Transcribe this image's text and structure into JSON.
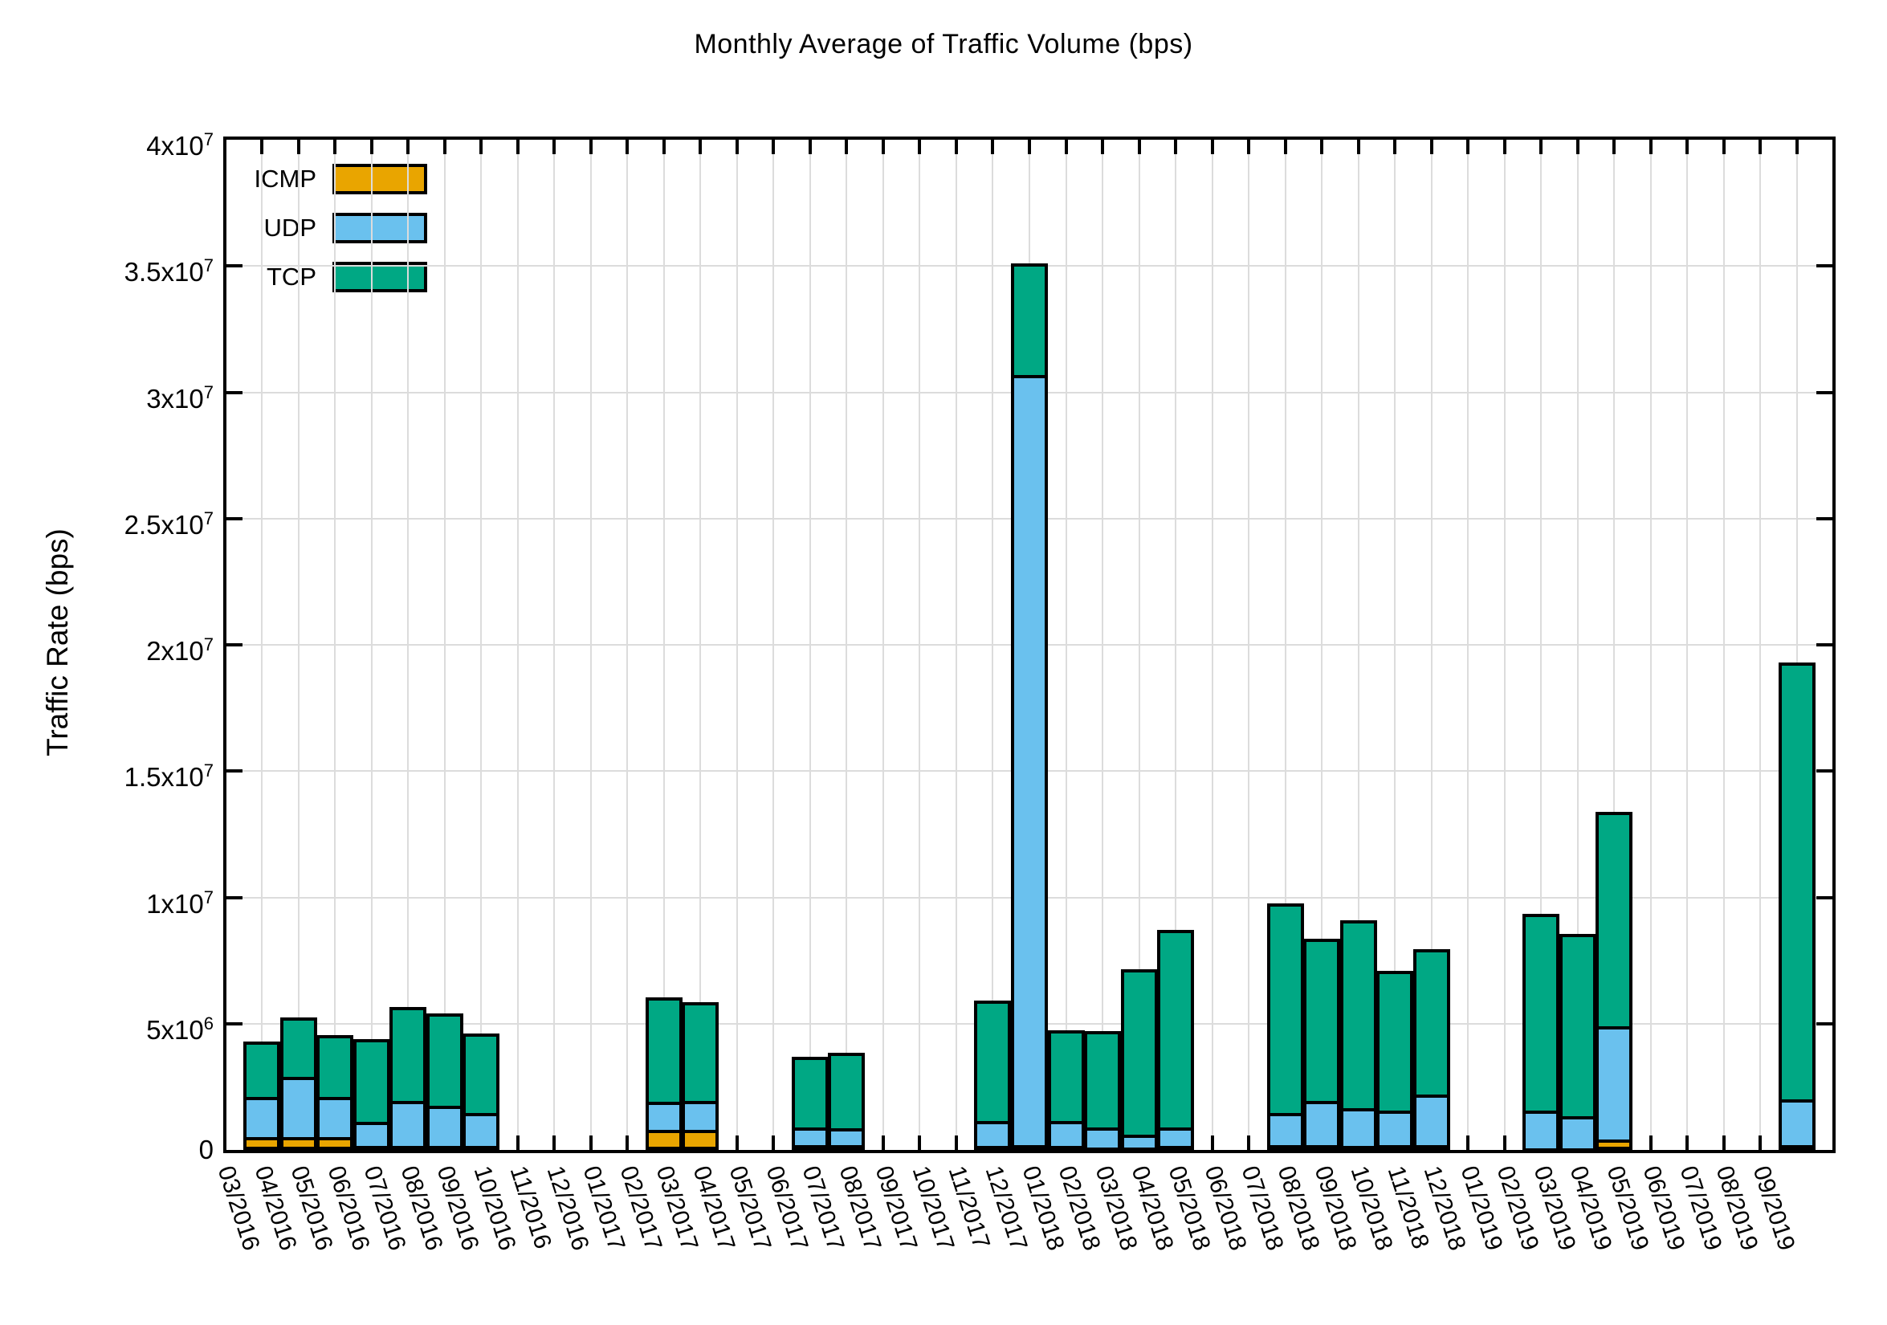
{
  "chart_data": {
    "type": "bar",
    "stacked": true,
    "title": "Monthly Average of Traffic Volume (bps)",
    "ylabel": "Traffic Rate (bps)",
    "xlabel": "",
    "grid": true,
    "legend_position": "top-left",
    "ylim": [
      0,
      40000000
    ],
    "ytick_step": 5000000,
    "ytick_labels": [
      "0",
      "5x10^6",
      "1x10^7",
      "1.5x10^7",
      "2x10^7",
      "2.5x10^7",
      "3x10^7",
      "3.5x10^7",
      "4x10^7"
    ],
    "categories": [
      "03/2016",
      "04/2016",
      "05/2016",
      "06/2016",
      "07/2016",
      "08/2016",
      "09/2016",
      "10/2016",
      "11/2016",
      "12/2016",
      "01/2017",
      "02/2017",
      "03/2017",
      "04/2017",
      "05/2017",
      "06/2017",
      "07/2017",
      "08/2017",
      "09/2017",
      "10/2017",
      "11/2017",
      "12/2017",
      "01/2018",
      "02/2018",
      "03/2018",
      "04/2018",
      "05/2018",
      "06/2018",
      "07/2018",
      "08/2018",
      "09/2018",
      "10/2018",
      "11/2018",
      "12/2018",
      "01/2019",
      "02/2019",
      "03/2019",
      "04/2019",
      "05/2019",
      "06/2019",
      "07/2019",
      "08/2019",
      "09/2019"
    ],
    "series": [
      {
        "name": "ICMP",
        "color": "#e9a500",
        "values": [
          500000,
          500000,
          500000,
          150000,
          150000,
          150000,
          150000,
          0,
          0,
          0,
          0,
          800000,
          800000,
          0,
          0,
          200000,
          200000,
          0,
          0,
          0,
          150000,
          200000,
          150000,
          100000,
          100000,
          150000,
          0,
          0,
          200000,
          200000,
          150000,
          200000,
          200000,
          0,
          0,
          50000,
          50000,
          400000,
          0,
          0,
          0,
          0,
          200000
        ]
      },
      {
        "name": "UDP",
        "color": "#6ac1ee",
        "values": [
          1600000,
          2400000,
          1600000,
          950000,
          1800000,
          1600000,
          1300000,
          0,
          0,
          0,
          0,
          1100000,
          1150000,
          0,
          0,
          700000,
          650000,
          0,
          0,
          0,
          1000000,
          30500000,
          1000000,
          800000,
          500000,
          750000,
          0,
          0,
          1250000,
          1750000,
          1500000,
          1350000,
          2000000,
          0,
          0,
          1500000,
          1300000,
          4500000,
          0,
          0,
          0,
          0,
          1800000
        ]
      },
      {
        "name": "TCP",
        "color": "#00a884",
        "values": [
          2200000,
          2350000,
          2450000,
          3300000,
          3700000,
          3650000,
          3150000,
          0,
          0,
          0,
          0,
          4150000,
          3900000,
          0,
          0,
          2800000,
          3000000,
          0,
          0,
          0,
          4750000,
          4400000,
          3600000,
          3800000,
          6550000,
          7800000,
          0,
          0,
          8300000,
          6400000,
          7450000,
          5550000,
          5750000,
          0,
          0,
          7800000,
          7200000,
          8500000,
          0,
          0,
          0,
          0,
          17300000
        ]
      }
    ],
    "colors": {
      "axis": "#000000",
      "grid": "#dcdcdc",
      "background": "#ffffff"
    }
  }
}
